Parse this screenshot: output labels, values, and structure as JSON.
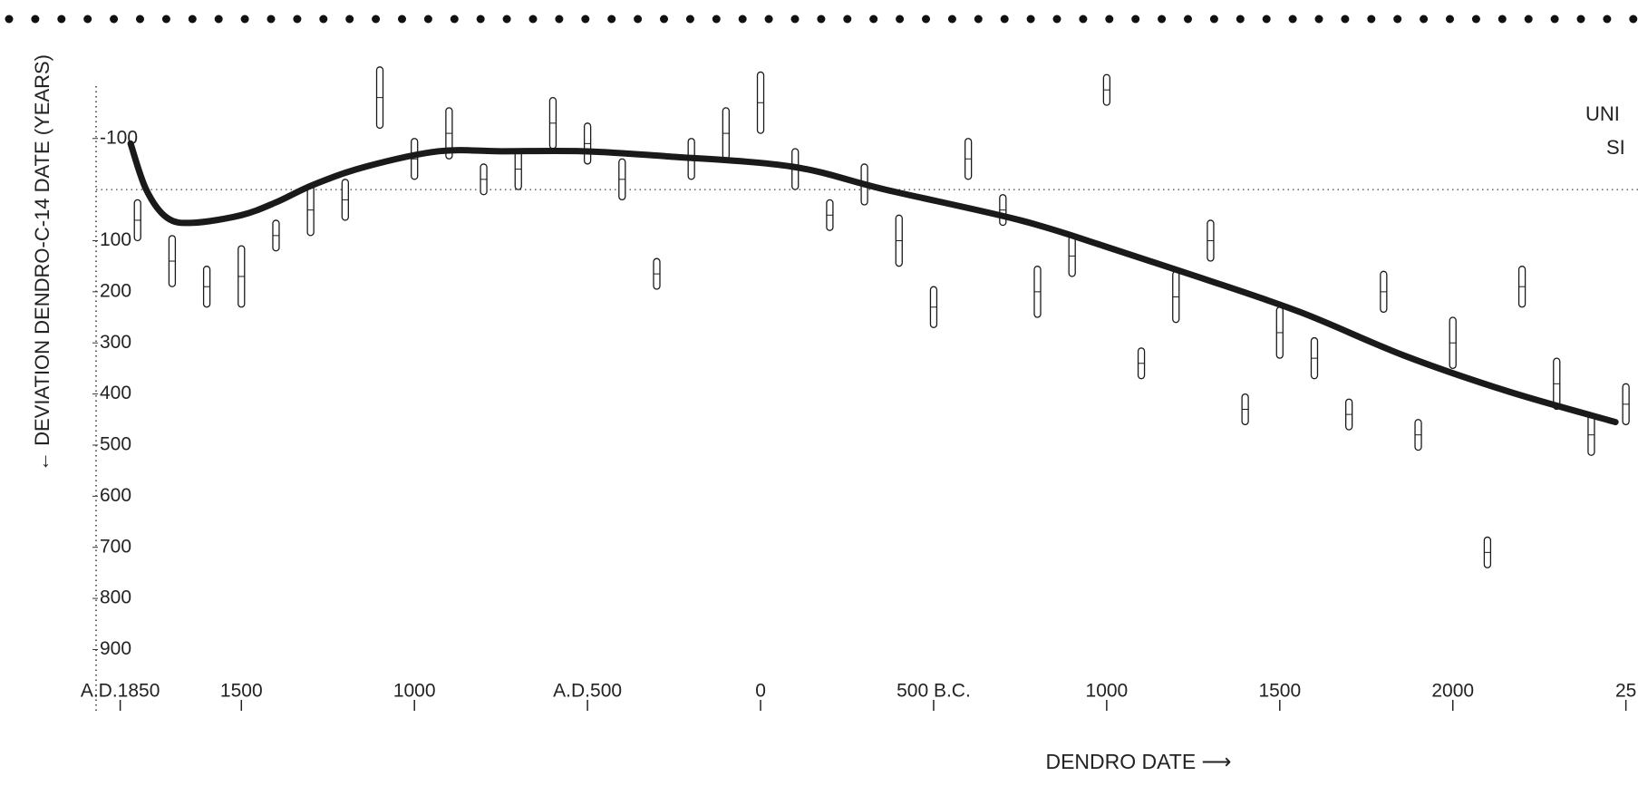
{
  "chart_data": {
    "type": "scatter",
    "x_label": "DENDRO DATE ⟶",
    "y_label": "← DEVIATION DENDRO-C-14 DATE (YEARS)",
    "annotations": [
      "UNI",
      "SI"
    ],
    "xlim": [
      1925,
      -2535
    ],
    "ylim": [
      -190,
      940
    ],
    "invert_y": true,
    "reference_line": 0,
    "xticks": [
      {
        "value": 1850,
        "label": "A.D.1850"
      },
      1500,
      1000,
      {
        "value": 500,
        "label": "A.D.500"
      },
      0,
      {
        "value": -500,
        "label": "500 B.C."
      },
      {
        "value": -1000,
        "label": "1000"
      },
      {
        "value": -1500,
        "label": "1500"
      },
      {
        "value": -2000,
        "label": "2000"
      },
      {
        "value": -2500,
        "label": "25"
      }
    ],
    "yticks": [
      -100,
      100,
      200,
      300,
      400,
      500,
      600,
      700,
      800,
      900
    ],
    "color": "#1a1a1a",
    "x": [
      1800,
      1700,
      1600,
      1500,
      1400,
      1300,
      1200,
      1100,
      1000,
      900,
      800,
      700,
      600,
      500,
      400,
      300,
      200,
      100,
      0,
      -100,
      -200,
      -300,
      -400,
      -500,
      -600,
      -700,
      -800,
      -900,
      -1000,
      -1100,
      -1200,
      -1300,
      -1400,
      -1500,
      -1600,
      -1700,
      -1800,
      -1900,
      -2000,
      -2100,
      -2200,
      -2300,
      -2400,
      -2500
    ],
    "values": [
      60,
      140,
      190,
      170,
      90,
      40,
      20,
      -180,
      -60,
      -110,
      -20,
      -40,
      -130,
      -90,
      -20,
      165,
      -60,
      -110,
      -170,
      -40,
      50,
      -10,
      100,
      230,
      -60,
      40,
      200,
      130,
      -195,
      340,
      210,
      100,
      430,
      280,
      330,
      440,
      200,
      480,
      300,
      710,
      190,
      380,
      480,
      420
    ],
    "errors": [
      40,
      50,
      40,
      60,
      30,
      50,
      40,
      60,
      40,
      50,
      30,
      40,
      50,
      40,
      40,
      30,
      40,
      50,
      60,
      40,
      30,
      40,
      50,
      40,
      40,
      30,
      50,
      40,
      30,
      30,
      50,
      40,
      30,
      50,
      40,
      30,
      40,
      30,
      50,
      30,
      40,
      50,
      40,
      40
    ],
    "curve": {
      "x": [
        1820,
        1775,
        1715,
        1640,
        1500,
        1400,
        1290,
        1140,
        930,
        750,
        510,
        270,
        -90,
        -360,
        -750,
        -990,
        -1260,
        -1560,
        -1860,
        -2160,
        -2470
      ],
      "values": [
        -90,
        0,
        55,
        65,
        50,
        25,
        -10,
        -45,
        -75,
        -75,
        -75,
        -65,
        -45,
        0,
        60,
        110,
        170,
        240,
        325,
        395,
        455
      ]
    }
  }
}
